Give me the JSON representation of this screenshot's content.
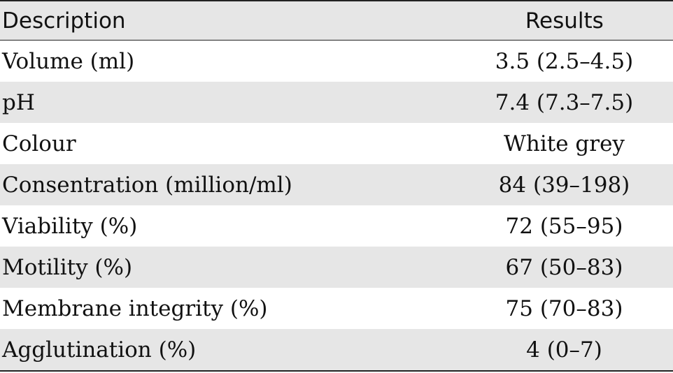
{
  "table": {
    "headers": {
      "description": "Description",
      "results": "Results"
    },
    "rows": [
      {
        "description": "Volume (ml)",
        "result": "3.5 (2.5–4.5)"
      },
      {
        "description": "pH",
        "result": "7.4 (7.3–7.5)"
      },
      {
        "description": "Colour",
        "result": "White grey"
      },
      {
        "description": "Consentration (million/ml)",
        "result": "84 (39–198)"
      },
      {
        "description": "Viability (%)",
        "result": "72 (55–95)"
      },
      {
        "description": "Motility (%)",
        "result": "67 (50–83)"
      },
      {
        "description": "Membrane integrity (%)",
        "result": "75 (70–83)"
      },
      {
        "description": "Agglutination (%)",
        "result": "4 (0–7)"
      }
    ]
  }
}
